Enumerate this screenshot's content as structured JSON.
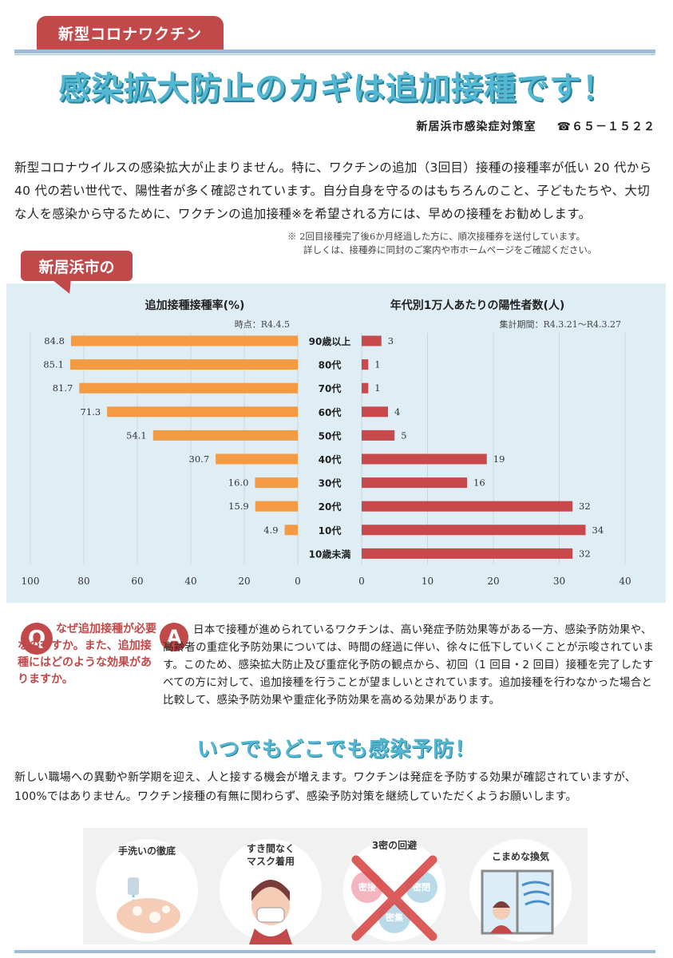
{
  "header": {
    "tag": "新型コロナワクチン",
    "headline": "感染拡大防止のカギは追加接種です！",
    "office": "新居浜市感染症対策室",
    "phone": "☎６５－１５２２"
  },
  "intro": {
    "body": "新型コロナウイルスの感染拡大が止まりません。特に、ワクチンの追加（3回目）接種の接種率が低い 20 代から 40 代の若い世代で、陽性者が多く確認されています。自分自身を守るのはもちろんのこと、子どもたちや、大切な人を感染から守るために、ワクチンの追加接種※を希望される方には、早めの接種をお勧めします。",
    "footnote_line1": "※ 2回目接種完了後6か月経過した方に、順次接種券を送付しています。",
    "footnote_line2": "詳しくは、接種券に同封のご案内や市ホームページをご確認ください。"
  },
  "city_tag": "新居浜市の",
  "chart_data": [
    {
      "type": "bar",
      "orientation": "horizontal",
      "direction": "right-to-left",
      "title": "追加接種接種率(%)",
      "note": "時点：R4.4.5",
      "categories": [
        "90歳以上",
        "80代",
        "70代",
        "60代",
        "50代",
        "40代",
        "30代",
        "20代",
        "10代",
        "10歳未満"
      ],
      "values": [
        84.8,
        85.1,
        81.7,
        71.3,
        54.1,
        30.7,
        16.0,
        15.9,
        4.9,
        null
      ],
      "value_labels": [
        "84.8",
        "85.1",
        "81.7",
        "71.3",
        "54.1",
        "30.7",
        "16.0",
        "15.9",
        "4.9",
        ""
      ],
      "xlim": [
        0,
        100
      ],
      "ticks": [
        "100",
        "80",
        "60",
        "40",
        "20",
        "0"
      ],
      "color": "#f39a43"
    },
    {
      "type": "bar",
      "orientation": "horizontal",
      "direction": "left-to-right",
      "title": "年代別1万人あたりの陽性者数(人)",
      "note": "集計期間：R4.3.21～R4.3.27",
      "categories": [
        "90歳以上",
        "80代",
        "70代",
        "60代",
        "50代",
        "40代",
        "30代",
        "20代",
        "10代",
        "10歳未満"
      ],
      "values": [
        3,
        1,
        1,
        4,
        5,
        19,
        16,
        32,
        34,
        32
      ],
      "value_labels": [
        "3",
        "1",
        "1",
        "4",
        "5",
        "19",
        "16",
        "32",
        "34",
        "32"
      ],
      "xlim": [
        0,
        40
      ],
      "ticks": [
        "0",
        "10",
        "20",
        "30",
        "40"
      ],
      "color": "#c8494c"
    }
  ],
  "qa": {
    "q_badge": "Q",
    "question": "なぜ追加接種が必要なのですか。また、追加接種にはどのような効果がありますか。",
    "a_badge": "A",
    "answer": "日本で接種が進められているワクチンは、高い発症予防効果等がある一方、感染予防効果や、高齢者の重症化予防効果については、時間の経過に伴い、徐々に低下していくことが示唆されています。このため、感染拡大防止及び重症化予防の観点から、初回（1 回目・2 回目）接種を完了したすべての方に対して、追加接種を行うことが望ましいとされています。追加接種を行わなかった場合と比較して、感染予防効果や重症化予防効果を高める効果があります。"
  },
  "prevention": {
    "heading": "いつでもどこでも感染予防！",
    "body": "新しい職場への異動や新学期を迎え、人と接する機会が増えます。ワクチンは発症を予防する効果が確認されていますが、100%ではありません。ワクチン接種の有無に関わらず、感染予防対策を継続していただくようお願いします。",
    "items": [
      {
        "label": "手洗いの徹底",
        "icon": "hand-wash-icon"
      },
      {
        "label": "すき間なく\nマスク着用",
        "icon": "mask-icon"
      },
      {
        "label": "3密の回避",
        "icon": "avoid-3c-icon",
        "sub": [
          "密接",
          "密閉",
          "密集"
        ]
      },
      {
        "label": "こまめな換気",
        "icon": "ventilation-icon"
      }
    ]
  },
  "colors": {
    "accent_red": "#c1494a",
    "headline_blue": "#54b8d2",
    "panel_bg": "#dfeef5",
    "rule_blue": "#9ebbd8"
  }
}
